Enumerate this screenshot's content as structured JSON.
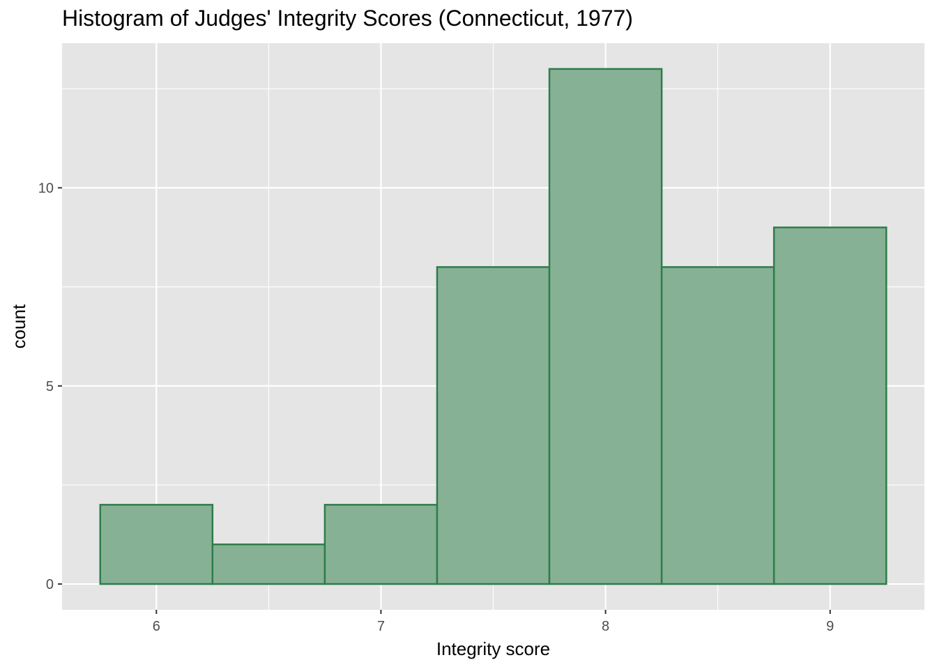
{
  "chart_data": {
    "type": "bar",
    "subtype": "histogram",
    "title": "Histogram of Judges' Integrity Scores (Connecticut, 1977)",
    "xlabel": "Integrity score",
    "ylabel": "count",
    "bins": [
      {
        "x0": 5.75,
        "x1": 6.25,
        "count": 2
      },
      {
        "x0": 6.25,
        "x1": 6.75,
        "count": 1
      },
      {
        "x0": 6.75,
        "x1": 7.25,
        "count": 2
      },
      {
        "x0": 7.25,
        "x1": 7.75,
        "count": 8
      },
      {
        "x0": 7.75,
        "x1": 8.25,
        "count": 13
      },
      {
        "x0": 8.25,
        "x1": 8.75,
        "count": 8
      },
      {
        "x0": 8.75,
        "x1": 9.25,
        "count": 9
      }
    ],
    "xlim": [
      5.58,
      9.42
    ],
    "ylim": [
      -0.65,
      13.65
    ],
    "xticks": [
      6,
      7,
      8,
      9
    ],
    "yticks": [
      0,
      5,
      10
    ],
    "x_minor_gridlines": [
      6.5,
      7.5,
      8.5
    ],
    "y_minor_gridlines": [
      2.5,
      7.5,
      12.5
    ],
    "grid": true,
    "colors": {
      "panel_background": "#e5e5e5",
      "gridline": "#ffffff",
      "bar_fill": "#87b195",
      "bar_outline": "#2e7d4a",
      "tick_label": "#4d4d4d"
    }
  }
}
